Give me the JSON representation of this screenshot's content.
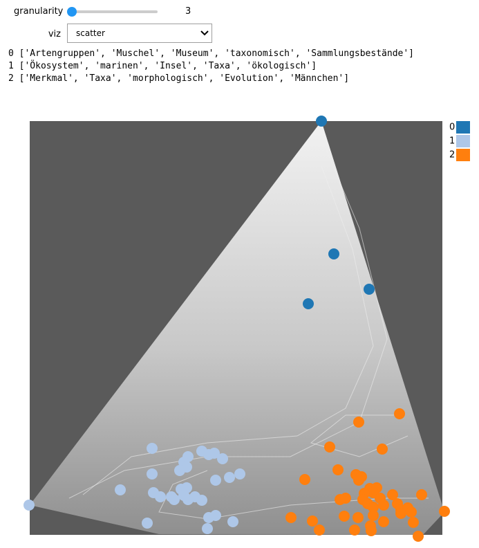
{
  "controls": {
    "slider_label": "granularity",
    "slider_value": "3",
    "select_label": "viz",
    "select_value": "scatter"
  },
  "topics": [
    "0 ['Artengruppen', 'Muschel', 'Museum', 'taxonomisch', 'Sammlungsbestände']",
    "1 ['Ökosystem', 'marinen', 'Insel', 'Taxa', 'ökologisch']",
    "2 ['Merkmal', 'Taxa', 'morphologisch', 'Evolution', 'Männchen']"
  ],
  "chart_data": {
    "type": "scatter",
    "xlim": [
      0,
      597
    ],
    "ylim": [
      0,
      598
    ],
    "series": [
      {
        "name": "0",
        "color": "#1f77b4",
        "x": [
          422,
          440,
          491,
          403
        ],
        "values": [
          598,
          406,
          355,
          334
        ]
      },
      {
        "name": "1",
        "color": "#aec7e8",
        "x": [
          -1,
          177,
          249,
          259,
          267,
          279,
          229,
          223,
          227,
          217,
          177,
          269,
          289,
          304,
          131,
          179,
          189,
          205,
          219,
          227,
          223,
          229,
          239,
          249,
          209,
          170,
          259,
          269,
          294,
          257
        ],
        "values": [
          43,
          125,
          121,
          116,
          118,
          110,
          113,
          105,
          98,
          93,
          88,
          79,
          83,
          88,
          65,
          61,
          55,
          55,
          66,
          68,
          57,
          51,
          55,
          50,
          51,
          17,
          25,
          28,
          19,
          9
        ]
      },
      {
        "name": "2",
        "color": "#ff7f0e",
        "x": [
          535,
          476,
          434,
          510,
          446,
          472,
          480,
          398,
          476,
          492,
          502,
          497,
          484,
          507,
          525,
          449,
          457,
          482,
          489,
          497,
          512,
          532,
          567,
          537,
          547,
          552,
          600,
          378,
          409,
          419,
          455,
          475,
          470,
          493,
          497,
          512,
          537,
          555,
          562,
          494
        ],
        "values": [
          175,
          163,
          127,
          124,
          94,
          87,
          84,
          80,
          79,
          67,
          68,
          61,
          60,
          53,
          58,
          51,
          53,
          51,
          45,
          40,
          43,
          45,
          58,
          36,
          39,
          33,
          34,
          25,
          20,
          7,
          27,
          25,
          7,
          13,
          28,
          19,
          31,
          18,
          -2,
          6
        ]
      }
    ]
  }
}
